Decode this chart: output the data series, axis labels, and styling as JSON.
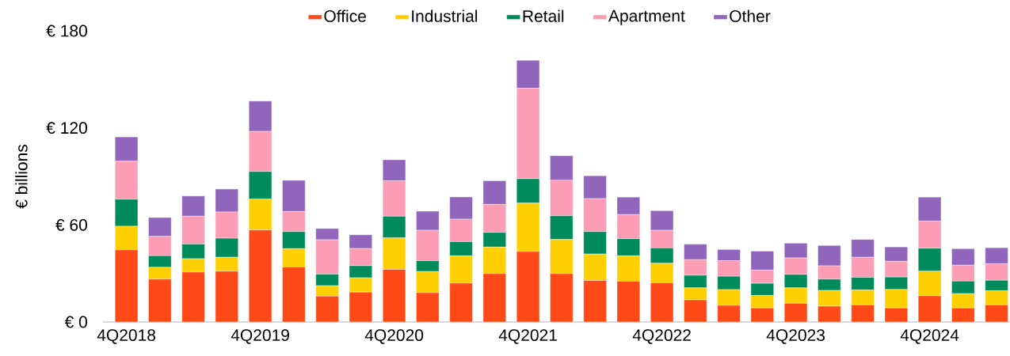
{
  "chart_data": {
    "type": "bar",
    "stacked": true,
    "ylabel": "€ billions",
    "categories": [
      "4Q2018",
      null,
      null,
      null,
      "4Q2019",
      null,
      null,
      null,
      "4Q2020",
      null,
      null,
      null,
      "4Q2021",
      null,
      null,
      null,
      "4Q2022",
      null,
      null,
      null,
      "4Q2023",
      null,
      null,
      null,
      "4Q2024",
      null,
      null
    ],
    "series": [
      {
        "name": "Office",
        "color": "#ff4a17",
        "values": [
          44.6,
          26.5,
          30.9,
          31.4,
          56.9,
          34.0,
          16.0,
          18.5,
          32.5,
          18.1,
          24.0,
          29.9,
          43.6,
          29.9,
          25.7,
          25.2,
          24.2,
          13.7,
          10.3,
          8.7,
          11.6,
          9.8,
          10.6,
          8.7,
          16.2,
          8.7,
          10.6
        ]
      },
      {
        "name": "Industrial",
        "color": "#ffcf00",
        "values": [
          14.6,
          7.3,
          8.2,
          8.6,
          19.0,
          11.3,
          6.4,
          8.8,
          19.5,
          13.1,
          16.9,
          16.4,
          29.9,
          21.1,
          16.3,
          15.7,
          12.1,
          7.4,
          9.7,
          7.7,
          9.5,
          9.7,
          9.2,
          11.4,
          15.2,
          8.8,
          8.7
        ]
      },
      {
        "name": "Retail",
        "color": "#008b5c",
        "values": [
          16.7,
          7.2,
          9.1,
          11.8,
          17.2,
          10.6,
          7.2,
          7.5,
          13.4,
          6.7,
          8.8,
          9.1,
          15.1,
          14.7,
          13.9,
          10.6,
          9.5,
          7.8,
          8.3,
          7.5,
          8.3,
          7.0,
          7.8,
          7.7,
          14.2,
          7.8,
          6.5
        ]
      },
      {
        "name": "Apartment",
        "color": "#fc9cb5",
        "values": [
          23.5,
          11.9,
          17.2,
          16.2,
          24.7,
          12.4,
          21.2,
          10.6,
          21.9,
          18.8,
          13.9,
          17.3,
          55.9,
          21.9,
          20.4,
          14.9,
          10.9,
          9.6,
          9.6,
          8.2,
          10.2,
          8.2,
          12.4,
          9.7,
          16.7,
          9.8,
          10.2
        ]
      },
      {
        "name": "Other",
        "color": "#9265bd",
        "values": [
          15.0,
          11.7,
          12.5,
          14.2,
          18.8,
          19.3,
          7.0,
          8.5,
          13.0,
          11.8,
          13.7,
          14.6,
          17.3,
          15.2,
          14.1,
          10.8,
          12.1,
          9.6,
          6.9,
          11.7,
          9.1,
          12.6,
          11.0,
          8.9,
          14.9,
          10.2,
          9.9
        ]
      }
    ],
    "ylim": [
      0,
      180
    ],
    "yticks": [
      {
        "value": 0,
        "label": "€ 0"
      },
      {
        "value": 60,
        "label": "€ 60"
      },
      {
        "value": 120,
        "label": "€ 120"
      },
      {
        "value": 180,
        "label": "€ 180"
      }
    ],
    "grid": false,
    "legend": "top"
  }
}
